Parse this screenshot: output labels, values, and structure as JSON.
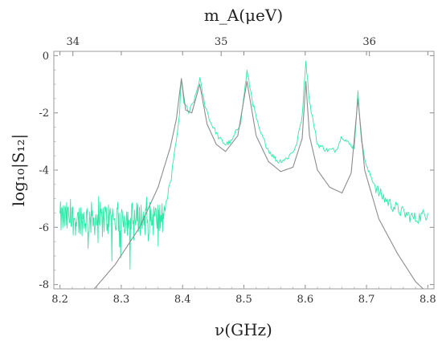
{
  "chart_data": {
    "type": "line",
    "xlabel": "ν(GHz)",
    "ylabel": "log₁₀|S₁₂|",
    "x2label": "m_A(μeV)",
    "xlim": [
      8.19,
      8.81
    ],
    "ylim": [
      -8.15,
      0.15
    ],
    "x_ticks": [
      8.2,
      8.3,
      8.4,
      8.5,
      8.6,
      8.7,
      8.8
    ],
    "x_tick_labels": [
      "8.2",
      "8.3",
      "8.4",
      "8.5",
      "8.6",
      "8.7",
      "8.8"
    ],
    "y_ticks": [
      -8,
      -6,
      -4,
      -2,
      0
    ],
    "y_tick_labels": [
      "-8",
      "-6",
      "-4",
      "-2",
      "0"
    ],
    "x2_ticks": [
      34,
      35,
      36
    ],
    "x2_tick_labels": [
      "34",
      "35",
      "36"
    ],
    "x2_conversion_mueV_per_GHz": 4.1357,
    "colors": {
      "measured": "#2ee8a8",
      "model": "#8c8c8c",
      "frame": "#999999"
    },
    "series": [
      {
        "role": "measured",
        "noise_region": {
          "x_start": 8.2,
          "x_end": 8.37,
          "mean": -5.7,
          "spread": 0.6
        },
        "x": [
          8.37,
          8.38,
          8.385,
          8.39,
          8.395,
          8.398,
          8.402,
          8.41,
          8.42,
          8.428,
          8.435,
          8.445,
          8.46,
          8.47,
          8.48,
          8.495,
          8.505,
          8.515,
          8.525,
          8.54,
          8.555,
          8.57,
          8.585,
          8.595,
          8.601,
          8.607,
          8.62,
          8.635,
          8.65,
          8.66,
          8.672,
          8.68,
          8.686,
          8.692,
          8.7,
          8.72,
          8.74,
          8.76,
          8.78,
          8.8
        ],
        "y": [
          -5.4,
          -4.6,
          -3.6,
          -3.0,
          -2.0,
          -0.85,
          -1.6,
          -2.0,
          -1.5,
          -0.8,
          -1.6,
          -2.3,
          -2.9,
          -3.1,
          -3.0,
          -2.3,
          -0.55,
          -1.7,
          -2.6,
          -3.3,
          -3.7,
          -3.6,
          -3.2,
          -2.1,
          -0.15,
          -1.6,
          -3.1,
          -3.3,
          -3.3,
          -2.8,
          -3.1,
          -3.2,
          -1.3,
          -3.0,
          -3.9,
          -4.8,
          -5.2,
          -5.5,
          -5.7,
          -5.5
        ]
      },
      {
        "role": "model",
        "x": [
          8.25,
          8.29,
          8.33,
          8.36,
          8.38,
          8.39,
          8.398,
          8.405,
          8.415,
          8.428,
          8.44,
          8.455,
          8.47,
          8.49,
          8.505,
          8.52,
          8.54,
          8.56,
          8.58,
          8.595,
          8.601,
          8.607,
          8.62,
          8.64,
          8.66,
          8.675,
          8.686,
          8.697,
          8.72,
          8.75,
          8.78,
          8.8
        ],
        "y": [
          -8.3,
          -7.3,
          -6.0,
          -4.6,
          -3.2,
          -2.2,
          -0.8,
          -1.9,
          -2.0,
          -1.0,
          -2.4,
          -3.1,
          -3.35,
          -2.8,
          -0.9,
          -2.8,
          -3.7,
          -4.05,
          -3.9,
          -2.9,
          -0.9,
          -2.8,
          -4.0,
          -4.6,
          -4.8,
          -4.1,
          -1.5,
          -4.0,
          -5.7,
          -6.9,
          -7.9,
          -8.3
        ]
      }
    ]
  }
}
